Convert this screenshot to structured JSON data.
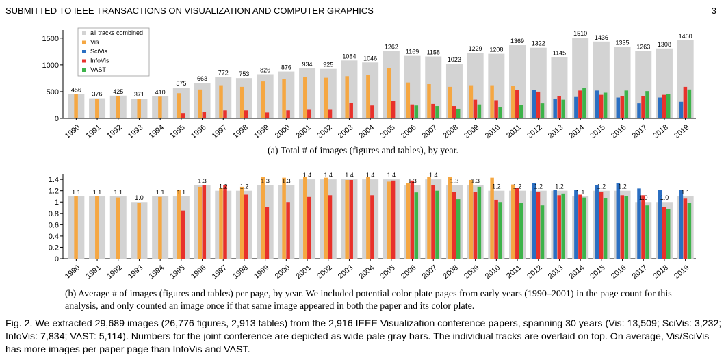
{
  "header": {
    "title": "SUBMITTED TO IEEE TRANSACTIONS ON VISUALIZATION AND COMPUTER GRAPHICS",
    "page_number": "3"
  },
  "colors": {
    "combined": "#d3d3d3",
    "Vis": "#f5a742",
    "SciVis": "#2b6fc2",
    "InfoVis": "#e8312b",
    "VAST": "#3db34a"
  },
  "captions": {
    "a": "(a) Total # of images (figures and tables), by year.",
    "b": "(b) Average # of images (figures and tables) per page, by year. We included potential color plate pages from early years (1990–2001) in the page count for this analysis, and only counted an image once if that same image appeared in both the paper and its color plate.",
    "figure": "Fig. 2. We extracted 29,689 images (26,776 figures, 2,913 tables) from the 2,916 IEEE Visualization conference papers, spanning 30 years (Vis: 13,509; SciVis: 3,232; InfoVis: 7,834; VAST: 5,114). Numbers for the joint conference are depicted as wide pale gray bars. The individual tracks are overlaid on top. On average, Vis/SciVis has more images per paper page than InfoVis and VAST."
  },
  "chart_data": [
    {
      "type": "bar",
      "legend": [
        "all tracks combined",
        "Vis",
        "SciVis",
        "InfoVis",
        "VAST"
      ],
      "legend_position": "top-left",
      "yticks": [
        "0",
        "500",
        "1000",
        "1500"
      ],
      "ylim": [
        0,
        1600
      ],
      "categories": [
        "1990",
        "1991",
        "1992",
        "1993",
        "1994",
        "1995",
        "1996",
        "1997",
        "1998",
        "1999",
        "2000",
        "2001",
        "2002",
        "2003",
        "2004",
        "2005",
        "2006",
        "2007",
        "2008",
        "2009",
        "2010",
        "2011",
        "2012",
        "2013",
        "2014",
        "2015",
        "2016",
        "2017",
        "2018",
        "2019"
      ],
      "series": [
        {
          "name": "all tracks combined",
          "values": [
            456,
            376,
            425,
            371,
            410,
            575,
            663,
            772,
            753,
            826,
            876,
            934,
            925,
            1084,
            1046,
            1262,
            1169,
            1158,
            1023,
            1229,
            1208,
            1369,
            1322,
            1145,
            1510,
            1436,
            1335,
            1263,
            1308,
            1460
          ]
        },
        {
          "name": "Vis",
          "values": [
            450,
            370,
            420,
            365,
            405,
            470,
            540,
            620,
            590,
            690,
            740,
            770,
            760,
            790,
            810,
            940,
            670,
            640,
            590,
            620,
            620,
            610,
            null,
            null,
            null,
            null,
            null,
            null,
            null,
            null
          ]
        },
        {
          "name": "SciVis",
          "values": [
            null,
            null,
            null,
            null,
            null,
            null,
            null,
            null,
            null,
            null,
            null,
            null,
            null,
            null,
            null,
            null,
            null,
            null,
            null,
            null,
            null,
            null,
            530,
            360,
            400,
            520,
            390,
            280,
            390,
            310
          ]
        },
        {
          "name": "InfoVis",
          "values": [
            null,
            null,
            null,
            null,
            null,
            100,
            120,
            150,
            150,
            110,
            150,
            160,
            160,
            290,
            240,
            330,
            260,
            270,
            230,
            350,
            340,
            530,
            500,
            410,
            520,
            440,
            410,
            420,
            440,
            590
          ]
        },
        {
          "name": "VAST",
          "values": [
            null,
            null,
            null,
            null,
            null,
            null,
            null,
            null,
            null,
            null,
            null,
            null,
            null,
            null,
            null,
            null,
            240,
            230,
            180,
            260,
            210,
            250,
            280,
            350,
            570,
            480,
            520,
            510,
            450,
            540
          ]
        }
      ],
      "labels": [
        "456",
        "376",
        "425",
        "371",
        "410",
        "575",
        "663",
        "772",
        "753",
        "826",
        "876",
        "934",
        "925",
        "1084",
        "1046",
        "1262",
        "1169",
        "1158",
        "1023",
        "1229",
        "1208",
        "1369",
        "1322",
        "1145",
        "1510",
        "1436",
        "1335",
        "1263",
        "1308",
        "1460"
      ]
    },
    {
      "type": "bar",
      "yticks": [
        "0",
        "0.2",
        "0.4",
        "0.6",
        "0.8",
        "1",
        "1.2",
        "1.4"
      ],
      "ylim": [
        0,
        1.45
      ],
      "categories": [
        "1990",
        "1991",
        "1992",
        "1993",
        "1994",
        "1995",
        "1996",
        "1997",
        "1998",
        "1999",
        "2000",
        "2001",
        "2002",
        "2003",
        "2004",
        "2005",
        "2006",
        "2007",
        "2008",
        "2009",
        "2010",
        "2011",
        "2012",
        "2013",
        "2014",
        "2015",
        "2016",
        "2017",
        "2018",
        "2019"
      ],
      "series": [
        {
          "name": "all tracks combined",
          "values": [
            1.1,
            1.1,
            1.1,
            1.0,
            1.1,
            1.1,
            1.3,
            1.2,
            1.2,
            1.3,
            1.3,
            1.4,
            1.4,
            1.4,
            1.4,
            1.4,
            1.3,
            1.4,
            1.3,
            1.3,
            1.2,
            1.2,
            1.2,
            1.2,
            1.1,
            1.2,
            1.2,
            1.0,
            1.0,
            1.1
          ]
        },
        {
          "name": "Vis",
          "values": [
            1.1,
            1.1,
            1.08,
            0.98,
            1.09,
            1.22,
            1.27,
            1.25,
            1.27,
            1.45,
            1.43,
            1.44,
            1.43,
            1.39,
            1.45,
            1.36,
            1.34,
            1.45,
            1.45,
            1.39,
            1.43,
            1.31,
            null,
            null,
            null,
            null,
            null,
            null,
            null,
            null
          ]
        },
        {
          "name": "SciVis",
          "values": [
            null,
            null,
            null,
            null,
            null,
            null,
            null,
            null,
            null,
            null,
            null,
            null,
            null,
            null,
            null,
            null,
            null,
            null,
            null,
            null,
            null,
            null,
            1.34,
            1.22,
            1.22,
            1.3,
            1.33,
            1.24,
            1.21,
            1.21
          ]
        },
        {
          "name": "InfoVis",
          "values": [
            null,
            null,
            null,
            null,
            null,
            0.85,
            1.3,
            1.3,
            1.13,
            0.91,
            1.0,
            1.09,
            1.12,
            1.39,
            1.12,
            1.38,
            1.38,
            1.3,
            1.18,
            1.18,
            1.04,
            1.25,
            1.18,
            1.12,
            1.13,
            1.18,
            1.12,
            1.12,
            0.91,
            1.06
          ]
        },
        {
          "name": "VAST",
          "values": [
            null,
            null,
            null,
            null,
            null,
            null,
            null,
            null,
            null,
            null,
            null,
            null,
            null,
            null,
            null,
            null,
            1.17,
            1.2,
            1.05,
            1.27,
            1.0,
            0.99,
            0.94,
            1.15,
            1.08,
            1.07,
            1.1,
            0.94,
            0.88,
            0.99
          ]
        }
      ],
      "labels": [
        "1.1",
        "1.1",
        "1.1",
        "1.0",
        "1.1",
        "1.1",
        "1.3",
        "1.2",
        "1.2",
        "1.3",
        "1.3",
        "1.4",
        "1.4",
        "1.4",
        "1.4",
        "1.4",
        "1.3",
        "1.4",
        "1.3",
        "1.3",
        "1.2",
        "1.2",
        "1.2",
        "1.2",
        "1.1",
        "1.2",
        "1.2",
        "1.0",
        "1.0",
        "1.1"
      ]
    }
  ]
}
